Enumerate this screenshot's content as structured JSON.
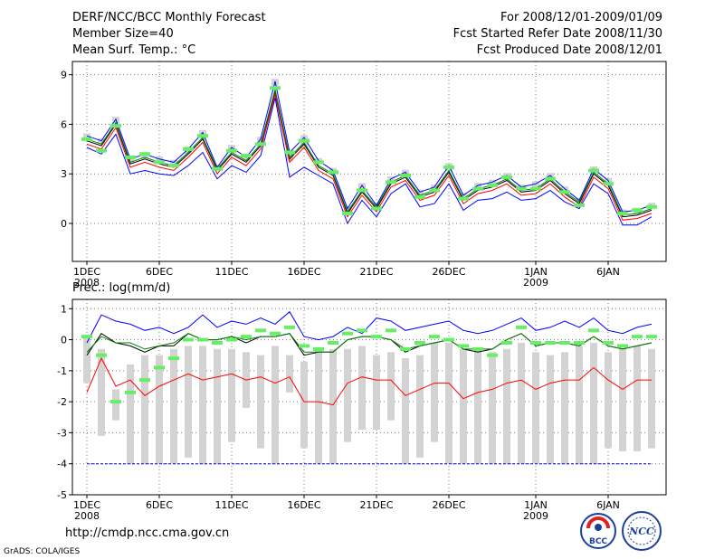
{
  "header": {
    "title": "DERF/NCC/BCC Monthly Forecast",
    "member_size": "Member Size=40",
    "variable": "Mean Surf. Temp.: °C",
    "forecast_period": "For 2008/12/01-2009/01/09",
    "started_date": "Fcst Started Refer Date 2008/11/30",
    "produced_date": "Fcst Produced Date 2008/12/01"
  },
  "precip_label": "Prec.: log(mm/d)",
  "footer": {
    "url": "http://cmdp.ncc.cma.gov.cn",
    "credit": "GrADS: COLA/IGES",
    "logo_left_text": "BCC",
    "logo_right_text": "NCC"
  },
  "colors": {
    "outer_band": "#0000ff",
    "mean_line": "#000000",
    "median_line": "#008000",
    "lower_line": "#ff0000",
    "box": "#d3d3d3",
    "marker": "#66ee66"
  },
  "chart_data": [
    {
      "type": "line",
      "title": "Mean Surf. Temp.: °C",
      "xlabel": "",
      "ylabel": "",
      "xlim": [
        1,
        40
      ],
      "ylim": [
        -2.3,
        9.8
      ],
      "yticks": [
        0,
        3,
        6,
        9
      ],
      "x_ticks": [
        {
          "day": 1,
          "label": "1DEC",
          "sub": "2008"
        },
        {
          "day": 6,
          "label": "6DEC",
          "sub": ""
        },
        {
          "day": 11,
          "label": "11DEC",
          "sub": ""
        },
        {
          "day": 16,
          "label": "16DEC",
          "sub": ""
        },
        {
          "day": 21,
          "label": "21DEC",
          "sub": ""
        },
        {
          "day": 26,
          "label": "26DEC",
          "sub": ""
        },
        {
          "day": 32,
          "label": "1JAN",
          "sub": "2009"
        },
        {
          "day": 37,
          "label": "6JAN",
          "sub": ""
        }
      ],
      "grid": true,
      "series": [
        {
          "name": "upper",
          "color": "#0000ff",
          "values": [
            5.3,
            5.0,
            6.3,
            3.9,
            4.2,
            3.9,
            3.7,
            4.5,
            5.5,
            3.4,
            4.6,
            4.0,
            5.1,
            8.6,
            4.3,
            5.2,
            3.8,
            3.2,
            0.9,
            2.3,
            1.1,
            2.7,
            3.1,
            1.9,
            2.2,
            3.5,
            1.7,
            2.3,
            2.5,
            2.9,
            2.2,
            2.4,
            2.9,
            2.1,
            1.4,
            3.3,
            2.6,
            0.7,
            0.8,
            1.1
          ]
        },
        {
          "name": "mean",
          "color": "#000000",
          "values": [
            5.0,
            4.7,
            6.0,
            3.6,
            3.9,
            3.6,
            3.4,
            4.2,
            5.1,
            3.2,
            4.2,
            3.7,
            4.7,
            8.0,
            3.9,
            4.8,
            3.4,
            2.9,
            0.6,
            1.9,
            0.9,
            2.4,
            2.8,
            1.6,
            1.9,
            3.1,
            1.4,
            2.0,
            2.2,
            2.6,
            1.9,
            2.0,
            2.6,
            1.8,
            1.2,
            3.0,
            2.3,
            0.4,
            0.5,
            0.8
          ]
        },
        {
          "name": "median",
          "color": "#008000",
          "values": [
            5.1,
            4.8,
            6.1,
            3.7,
            4.0,
            3.7,
            3.5,
            4.3,
            5.2,
            3.3,
            4.3,
            3.8,
            4.8,
            8.1,
            4.0,
            4.9,
            3.5,
            3.0,
            0.7,
            2.0,
            1.0,
            2.5,
            2.9,
            1.7,
            2.0,
            3.2,
            1.5,
            2.1,
            2.3,
            2.7,
            2.0,
            2.1,
            2.7,
            1.9,
            1.3,
            3.1,
            2.4,
            0.5,
            0.6,
            0.9
          ]
        },
        {
          "name": "lower",
          "color": "#ff0000",
          "values": [
            4.8,
            4.5,
            5.8,
            3.4,
            3.7,
            3.4,
            3.2,
            4.0,
            4.9,
            3.0,
            4.0,
            3.5,
            4.5,
            7.8,
            3.7,
            4.6,
            3.2,
            2.7,
            0.4,
            1.7,
            0.7,
            2.2,
            2.6,
            1.4,
            1.7,
            2.9,
            1.2,
            1.8,
            2.0,
            2.4,
            1.7,
            1.8,
            2.4,
            1.6,
            1.0,
            2.8,
            2.1,
            0.2,
            0.3,
            0.6
          ]
        },
        {
          "name": "minimum",
          "color": "#0000ff",
          "values": [
            4.6,
            4.2,
            5.4,
            3.0,
            3.2,
            3.0,
            2.9,
            3.5,
            4.3,
            2.7,
            3.5,
            3.1,
            4.1,
            7.6,
            2.8,
            3.4,
            2.9,
            2.4,
            0.0,
            1.4,
            0.4,
            1.8,
            2.4,
            1.0,
            1.2,
            2.4,
            0.8,
            1.4,
            1.5,
            1.9,
            1.4,
            1.5,
            2.0,
            1.3,
            0.9,
            2.4,
            1.8,
            -0.1,
            -0.1,
            0.4
          ]
        }
      ],
      "markers": [
        5.1,
        4.4,
        5.9,
        4.0,
        4.2,
        3.7,
        3.5,
        4.5,
        5.3,
        3.3,
        4.4,
        4.1,
        4.8,
        8.2,
        4.3,
        5.0,
        3.7,
        3.1,
        0.6,
        2.0,
        0.9,
        2.5,
        2.9,
        1.6,
        2.0,
        3.4,
        1.5,
        2.1,
        2.3,
        2.8,
        2.1,
        2.1,
        2.7,
        1.9,
        1.1,
        3.2,
        2.4,
        0.6,
        0.8,
        1.0
      ]
    },
    {
      "type": "line",
      "title": "Prec.: log(mm/d)",
      "xlabel": "",
      "ylabel": "",
      "xlim": [
        1,
        40
      ],
      "ylim": [
        -5,
        1.3
      ],
      "yticks": [
        -5,
        -4,
        -3,
        -2,
        -1,
        0,
        1
      ],
      "x_ticks": [
        {
          "day": 1,
          "label": "1DEC",
          "sub": "2008"
        },
        {
          "day": 6,
          "label": "6DEC",
          "sub": ""
        },
        {
          "day": 11,
          "label": "11DEC",
          "sub": ""
        },
        {
          "day": 16,
          "label": "16DEC",
          "sub": ""
        },
        {
          "day": 21,
          "label": "21DEC",
          "sub": ""
        },
        {
          "day": 26,
          "label": "26DEC",
          "sub": ""
        },
        {
          "day": 32,
          "label": "1JAN",
          "sub": "2009"
        },
        {
          "day": 37,
          "label": "6JAN",
          "sub": ""
        }
      ],
      "grid": true,
      "baseline": -4,
      "boxes": {
        "top": [
          0.1,
          -0.3,
          -1.6,
          -0.8,
          -0.5,
          -0.5,
          -0.3,
          -0.2,
          -0.2,
          -0.3,
          -0.3,
          -0.4,
          -0.5,
          -0.2,
          -0.5,
          -0.7,
          -0.3,
          -0.3,
          -0.3,
          -0.2,
          -0.5,
          -0.4,
          -0.6,
          -0.5,
          -0.1,
          -0.1,
          -0.3,
          -0.3,
          -0.4,
          -0.3,
          -0.1,
          -0.4,
          -0.5,
          -0.4,
          -0.2,
          -0.1,
          -0.4,
          -0.3,
          -0.2,
          -0.3
        ],
        "bottom": [
          -1.4,
          -3.1,
          -2.6,
          -4.0,
          -4.0,
          -4.0,
          -4.0,
          -3.8,
          -4.0,
          -4.0,
          -3.3,
          -2.2,
          -3.5,
          -4.0,
          -1.7,
          -3.5,
          -4.0,
          -4.0,
          -3.3,
          -2.9,
          -2.9,
          -2.6,
          -4.0,
          -3.8,
          -3.3,
          -4.0,
          -4.0,
          -4.0,
          -4.0,
          -4.0,
          -4.0,
          -4.0,
          -4.0,
          -4.0,
          -4.0,
          -4.0,
          -3.5,
          -3.6,
          -3.6,
          -3.5
        ]
      },
      "series": [
        {
          "name": "upper",
          "color": "#0000ff",
          "values": [
            -0.1,
            0.8,
            0.6,
            0.5,
            0.3,
            0.4,
            0.2,
            0.4,
            0.8,
            0.4,
            0.6,
            0.5,
            0.7,
            0.5,
            0.9,
            0.1,
            0.0,
            0.1,
            0.4,
            0.2,
            0.7,
            0.6,
            0.3,
            0.4,
            0.5,
            0.6,
            0.3,
            0.2,
            0.3,
            0.5,
            0.7,
            0.3,
            0.4,
            0.6,
            0.4,
            0.7,
            0.3,
            0.2,
            0.4,
            0.5
          ]
        },
        {
          "name": "mean",
          "color": "#000000",
          "values": [
            -0.5,
            0.2,
            -0.1,
            -0.2,
            -0.4,
            -0.2,
            -0.2,
            0.2,
            0.0,
            0.0,
            0.1,
            -0.1,
            0.1,
            0.1,
            0.2,
            -0.5,
            -0.4,
            -0.4,
            0.0,
            0.1,
            0.1,
            0.0,
            -0.4,
            -0.2,
            -0.1,
            0.0,
            -0.3,
            -0.4,
            -0.3,
            0.0,
            0.2,
            -0.2,
            -0.1,
            -0.1,
            -0.2,
            0.1,
            -0.2,
            -0.3,
            -0.2,
            -0.1
          ]
        },
        {
          "name": "median",
          "color": "#008000",
          "values": [
            -0.4,
            0.1,
            -0.1,
            -0.1,
            -0.3,
            -0.2,
            -0.1,
            0.2,
            0.0,
            0.0,
            0.1,
            0.0,
            0.1,
            0.1,
            0.2,
            -0.4,
            -0.4,
            -0.4,
            0.0,
            0.1,
            0.1,
            0.0,
            -0.3,
            -0.2,
            -0.1,
            0.0,
            -0.3,
            -0.3,
            -0.3,
            0.0,
            0.2,
            -0.2,
            -0.1,
            -0.1,
            -0.2,
            0.1,
            -0.2,
            -0.3,
            -0.2,
            -0.1
          ]
        },
        {
          "name": "lower",
          "color": "#ff0000",
          "values": [
            -1.7,
            -0.6,
            -1.5,
            -1.3,
            -1.8,
            -1.5,
            -1.3,
            -1.1,
            -1.3,
            -1.2,
            -1.1,
            -1.3,
            -1.2,
            -1.4,
            -1.2,
            -2.0,
            -2.0,
            -2.1,
            -1.4,
            -1.2,
            -1.3,
            -1.3,
            -1.8,
            -1.6,
            -1.4,
            -1.4,
            -1.9,
            -1.7,
            -1.6,
            -1.4,
            -1.3,
            -1.6,
            -1.4,
            -1.3,
            -1.3,
            -0.9,
            -1.3,
            -1.6,
            -1.3,
            -1.3
          ]
        }
      ],
      "markers": [
        0.1,
        -0.5,
        -2.0,
        -1.7,
        -1.3,
        -0.9,
        -0.6,
        0.0,
        0.0,
        -0.1,
        0.0,
        0.1,
        0.3,
        0.2,
        0.4,
        -0.2,
        -0.3,
        -0.1,
        0.2,
        0.3,
        0.1,
        0.3,
        -0.3,
        -0.1,
        0.1,
        0.0,
        -0.2,
        -0.3,
        -0.5,
        -0.1,
        0.4,
        -0.1,
        -0.1,
        -0.1,
        -0.1,
        0.3,
        -0.1,
        -0.2,
        0.1,
        0.1
      ]
    }
  ]
}
